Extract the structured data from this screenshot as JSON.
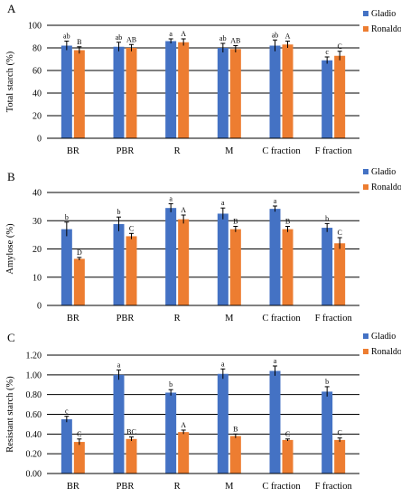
{
  "colors": {
    "gladio": "#4472C4",
    "ronaldo": "#ED7D31",
    "axis": "#000000",
    "error": "#000000"
  },
  "chart_data": [
    {
      "type": "bar",
      "panel_label": "A",
      "ylabel": "Total starch (%)",
      "categories": [
        "BR",
        "PBR",
        "R",
        "M",
        "C fraction",
        "F fraction"
      ],
      "ylim": [
        0,
        100
      ],
      "yticks": [
        "0",
        "20",
        "40",
        "60",
        "80",
        "100"
      ],
      "grid": true,
      "legend_position": "top-right",
      "series": [
        {
          "name": "Gladio",
          "color_key": "gladio",
          "values": [
            82,
            81,
            86,
            80,
            82,
            69
          ],
          "errors": [
            4,
            4,
            2,
            4,
            5,
            3
          ],
          "letters": [
            "ab",
            "ab",
            "a",
            "ab",
            "ab",
            "c"
          ]
        },
        {
          "name": "Ronaldo",
          "color_key": "ronaldo",
          "values": [
            78,
            80,
            85,
            79,
            83,
            73
          ],
          "errors": [
            3,
            3,
            3,
            3,
            3,
            4
          ],
          "letters": [
            "B",
            "AB",
            "A",
            "AB",
            "A",
            "C"
          ]
        }
      ]
    },
    {
      "type": "bar",
      "panel_label": "B",
      "ylabel": "Amylose (%)",
      "categories": [
        "BR",
        "PBR",
        "R",
        "M",
        "C fraction",
        "F fraction"
      ],
      "ylim": [
        0,
        40
      ],
      "yticks": [
        "0",
        "10",
        "20",
        "30",
        "40"
      ],
      "grid": true,
      "legend_position": "top-right",
      "series": [
        {
          "name": "Gladio",
          "color_key": "gladio",
          "values": [
            27,
            28.8,
            34.5,
            32.5,
            34.2,
            27.5
          ],
          "errors": [
            2.5,
            2.5,
            1.5,
            2,
            1,
            1.5
          ],
          "letters": [
            "b",
            "b",
            "a",
            "a",
            "a",
            "b"
          ]
        },
        {
          "name": "Ronaldo",
          "color_key": "ronaldo",
          "values": [
            16.5,
            24.5,
            30.5,
            27,
            27,
            22
          ],
          "errors": [
            0.5,
            1,
            1.5,
            1,
            1,
            2
          ],
          "letters": [
            "D",
            "C",
            "A",
            "B",
            "B",
            "C"
          ]
        }
      ]
    },
    {
      "type": "bar",
      "panel_label": "C",
      "ylabel": "Resistant starch (%)",
      "categories": [
        "BR",
        "PBR",
        "R",
        "M",
        "C fraction",
        "F fraction"
      ],
      "ylim": [
        0,
        1.2
      ],
      "yticks": [
        "0.00",
        "0.20",
        "0.40",
        "0.60",
        "0.80",
        "1.00",
        "1.20"
      ],
      "grid": true,
      "legend_position": "top-right",
      "series": [
        {
          "name": "Gladio",
          "color_key": "gladio",
          "values": [
            0.55,
            1.0,
            0.82,
            1.01,
            1.04,
            0.83
          ],
          "errors": [
            0.03,
            0.05,
            0.03,
            0.05,
            0.05,
            0.05
          ],
          "letters": [
            "c",
            "a",
            "b",
            "a",
            "a",
            "b"
          ]
        },
        {
          "name": "Ronaldo",
          "color_key": "ronaldo",
          "values": [
            0.32,
            0.35,
            0.42,
            0.38,
            0.34,
            0.34
          ],
          "errors": [
            0.03,
            0.02,
            0.02,
            0.02,
            0.01,
            0.02
          ],
          "letters": [
            "C",
            "BC",
            "A",
            "B",
            "C",
            "C"
          ]
        }
      ]
    }
  ]
}
